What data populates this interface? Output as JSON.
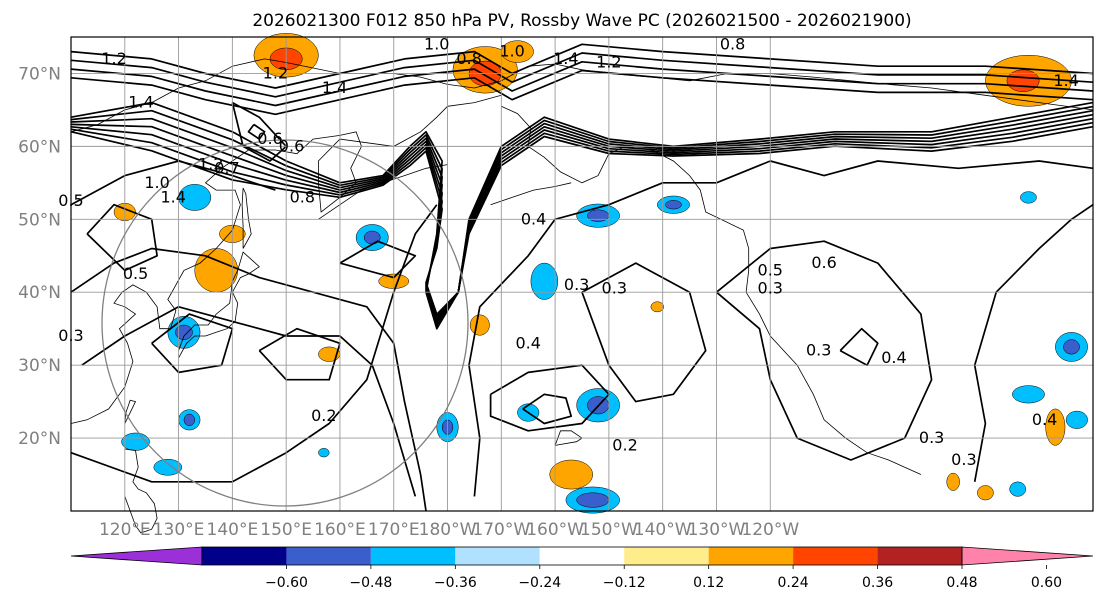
{
  "title": "2026021300 F012 850 hPa PV, Rossby Wave PC (2026021500 - 2026021900)",
  "map": {
    "lon_min": 110,
    "lon_max": 300,
    "lat_min": 10,
    "lat_max": 75,
    "lat_labels": [
      "70°N",
      "60°N",
      "50°N",
      "40°N",
      "30°N",
      "20°N"
    ],
    "lat_values": [
      70,
      60,
      50,
      40,
      30,
      20
    ],
    "lon_labels": [
      "120°E",
      "130°E",
      "140°E",
      "150°E",
      "160°E",
      "170°E",
      "180°W",
      "170°W",
      "160°W",
      "150°W",
      "140°W",
      "130°W",
      "120°W"
    ],
    "lon_values": [
      120,
      130,
      140,
      150,
      160,
      170,
      180,
      190,
      200,
      210,
      220,
      230,
      240
    ],
    "grid": true,
    "contour_labels": [
      "1.2",
      "1.4",
      "1.0",
      "0.8",
      "1.4",
      "1.2",
      "1.0",
      "0.8",
      "1.4",
      "0.6",
      "0.8",
      "1.2",
      "1.4",
      "0.6",
      "1.0",
      "0.7",
      "0.5",
      "0.5",
      "0.3",
      "0.4",
      "0.3",
      "0.3",
      "0.4",
      "0.5",
      "0.6",
      "0.4",
      "0.3",
      "0.2",
      "0.2",
      "0.3",
      "0.4",
      "0.3",
      "0.3",
      "1.4",
      "1.2"
    ]
  },
  "colorbar": {
    "tick_labels": [
      "−0.60",
      "−0.48",
      "−0.36",
      "−0.24",
      "−0.12",
      "0.12",
      "0.24",
      "0.36",
      "0.48",
      "0.60"
    ],
    "bins": [
      {
        "color": "#9b30d9"
      },
      {
        "color": "#00008b"
      },
      {
        "color": "#3a5fcd"
      },
      {
        "color": "#00bfff"
      },
      {
        "color": "#b0e2ff"
      },
      {
        "color": "#ffffff"
      },
      {
        "color": "#ffec8b"
      },
      {
        "color": "#ffa500"
      },
      {
        "color": "#ff4500"
      },
      {
        "color": "#b22222"
      },
      {
        "color": "#ff82ab"
      }
    ]
  }
}
